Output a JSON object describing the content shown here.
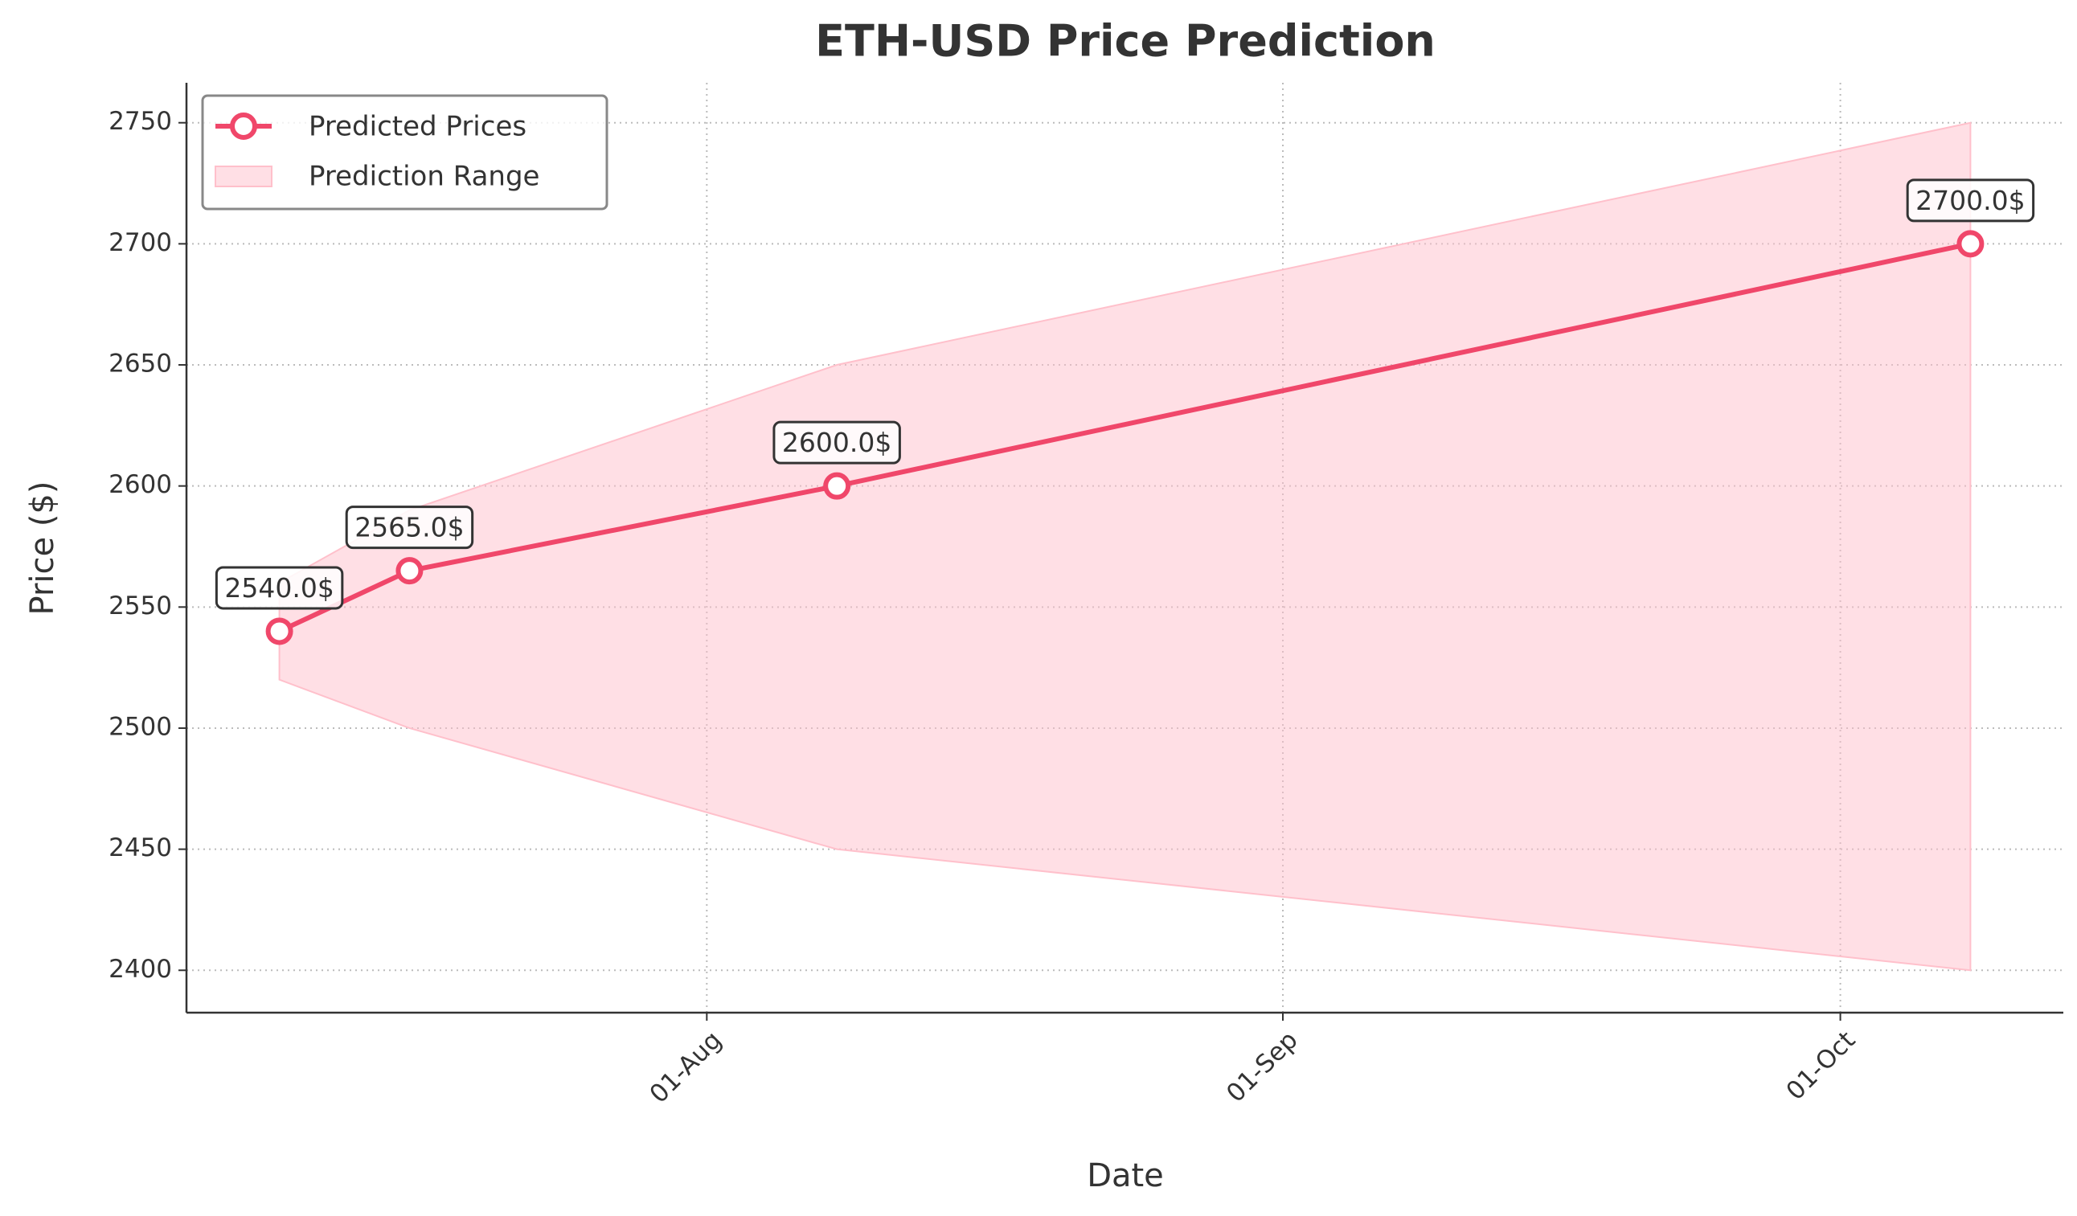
{
  "chart_data": {
    "type": "line",
    "title": "ETH-USD Price Prediction",
    "x_label": "Date",
    "y_label": "Price ($)",
    "x": [
      "09-Jul",
      "16-Jul",
      "08-Aug",
      "08-Oct"
    ],
    "series": [
      {
        "name": "Predicted Prices",
        "color": "#f0476a",
        "values": [
          2540,
          2565,
          2600,
          2700
        ],
        "value_labels": [
          "2540.0$",
          "2565.0$",
          "2600.0$",
          "2700.0$"
        ]
      }
    ],
    "range": {
      "name": "Prediction Range",
      "color": "#ffc0cb",
      "lower": [
        2520,
        2500,
        2450,
        2400
      ],
      "upper": [
        2560,
        2590,
        2650,
        2750
      ]
    },
    "xlim": [
      "04-Jul",
      "13-Oct"
    ],
    "xticks": [
      "01-Aug",
      "01-Sep",
      "01-Oct"
    ],
    "ylim": [
      2382.5,
      2766.5
    ],
    "yticks": [
      2400,
      2450,
      2500,
      2550,
      2600,
      2650,
      2700,
      2750
    ],
    "grid": true,
    "legend": "upper left"
  }
}
